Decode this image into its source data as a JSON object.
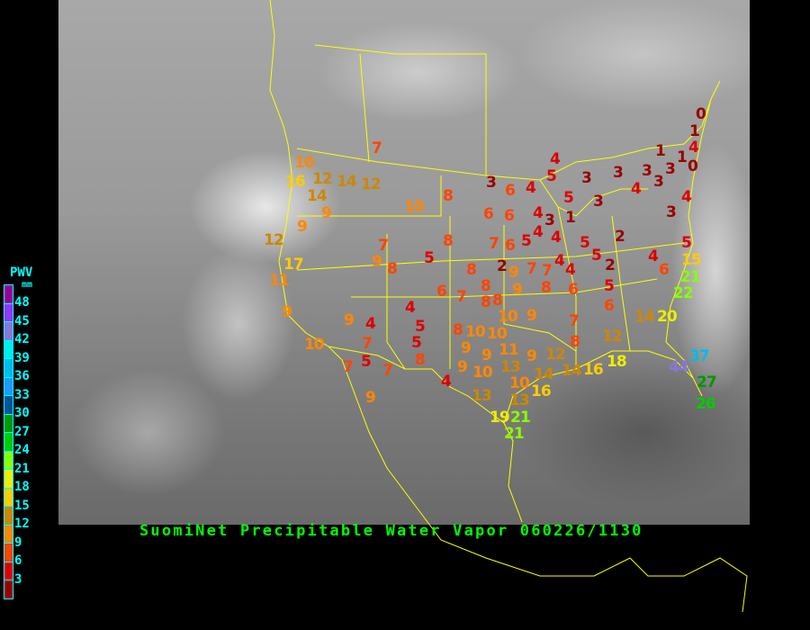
{
  "title": "SuomiNet Precipitable Water Vapor 060226/1130",
  "legend": {
    "heading": "PWV",
    "unit": "mm",
    "ticks": [
      "48",
      "45",
      "42",
      "39",
      "36",
      "33",
      "30",
      "27",
      "24",
      "21",
      "18",
      "15",
      "12",
      "9",
      "6",
      "3"
    ],
    "colors": [
      "#990099",
      "#9933ff",
      "#8877dd",
      "#00eeee",
      "#00bbee",
      "#2299ff",
      "#005599",
      "#009900",
      "#00cc00",
      "#88ff00",
      "#eeee00",
      "#ffcc00",
      "#cc8800",
      "#ff8800",
      "#ff4400",
      "#dd0000",
      "#990000"
    ]
  },
  "colors": {
    "border_lines": "#ffff00",
    "title_text": "#00ff00",
    "legend_text": "#00ffff",
    "background": "#000000"
  },
  "stations": [
    "7",
    "10",
    "16",
    "12",
    "14",
    "12",
    "14",
    "9",
    "10",
    "8",
    "3",
    "6",
    "4",
    "4",
    "5",
    "3",
    "3",
    "3",
    "1",
    "1",
    "4",
    "0",
    "3",
    "3",
    "4",
    "3",
    "5",
    "1",
    "0",
    "4",
    "6",
    "6",
    "4",
    "3",
    "1",
    "4",
    "5",
    "4",
    "3",
    "9",
    "12",
    "7",
    "8",
    "5",
    "9",
    "8",
    "7",
    "6",
    "8",
    "2",
    "7",
    "7",
    "4",
    "4",
    "5",
    "5",
    "2",
    "2",
    "5",
    "17",
    "11",
    "9",
    "8",
    "9",
    "8",
    "6",
    "5",
    "6",
    "7",
    "8",
    "4",
    "6",
    "15",
    "21",
    "22",
    "9",
    "4",
    "8",
    "9",
    "6",
    "14",
    "20",
    "9",
    "4",
    "10",
    "7",
    "5",
    "5",
    "8",
    "10",
    "10",
    "7",
    "9",
    "12",
    "8",
    "10",
    "9",
    "11",
    "9",
    "12",
    "7",
    "5",
    "7",
    "8",
    "9",
    "10",
    "13",
    "10",
    "14",
    "14",
    "16",
    "18",
    "37",
    "44",
    "4",
    "27",
    "9",
    "13",
    "13",
    "16",
    "26",
    "19",
    "21",
    "21"
  ]
}
